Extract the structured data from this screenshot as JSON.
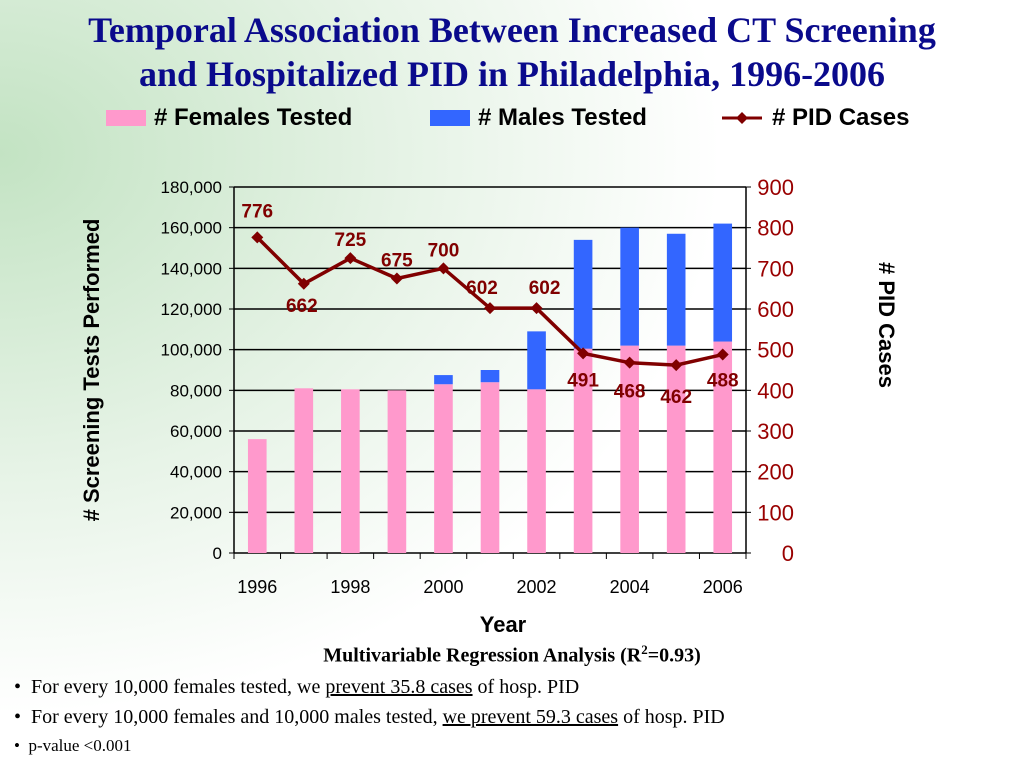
{
  "title_line1": "Temporal Association Between Increased CT Screening",
  "title_line2": "and Hospitalized PID in Philadelphia, 1996-2006",
  "chart_data": {
    "type": "bar+line",
    "categories": [
      "1996",
      "1997",
      "1998",
      "1999",
      "2000",
      "2001",
      "2002",
      "2003",
      "2004",
      "2005",
      "2006"
    ],
    "x_tick_labels": [
      "1996",
      "1998",
      "2000",
      "2002",
      "2004",
      "2006"
    ],
    "series": [
      {
        "name": "# Females Tested",
        "type": "stacked-bar",
        "axis": "left",
        "color": "#ff99cc",
        "values": [
          56000,
          81000,
          80500,
          80000,
          83000,
          84000,
          80500,
          100500,
          102000,
          102000,
          104000
        ]
      },
      {
        "name": "# Males Tested",
        "type": "stacked-bar",
        "axis": "left",
        "color": "#3366ff",
        "values": [
          0,
          0,
          0,
          0,
          4500,
          6000,
          28500,
          53500,
          58000,
          55000,
          58000
        ]
      },
      {
        "name": "# PID Cases",
        "type": "line",
        "axis": "right",
        "color": "#800000",
        "marker": "diamond",
        "values": [
          776,
          662,
          725,
          675,
          700,
          602,
          602,
          491,
          468,
          462,
          488
        ]
      }
    ],
    "xlabel": "Year",
    "ylabel": "# Screening Tests Performed",
    "y2label": "# PID Cases",
    "ylim": [
      0,
      180000
    ],
    "y2lim": [
      0,
      900
    ],
    "y_ticks": [
      "0",
      "20,000",
      "40,000",
      "60,000",
      "80,000",
      "100,000",
      "120,000",
      "140,000",
      "160,000",
      "180,000"
    ],
    "y2_ticks": [
      "0",
      "100",
      "200",
      "300",
      "400",
      "500",
      "600",
      "700",
      "800",
      "900"
    ],
    "grid": true,
    "legend": "top"
  },
  "notes": {
    "regression_prefix": "Multivariable Regression Analysis (R",
    "regression_sup": "2",
    "regression_suffix": "=0.93)",
    "bullet": "•",
    "b1_pre": "For every 10,000 females tested, we ",
    "b1_u": "prevent 35.8 cases",
    "b1_post": " of hosp. PID",
    "b2_pre": "For every 10,000 females and 10,000 males tested, ",
    "b2_u": "we prevent 59.3 cases",
    "b2_post": " of hosp. PID",
    "b3": "p-value <0.001"
  }
}
